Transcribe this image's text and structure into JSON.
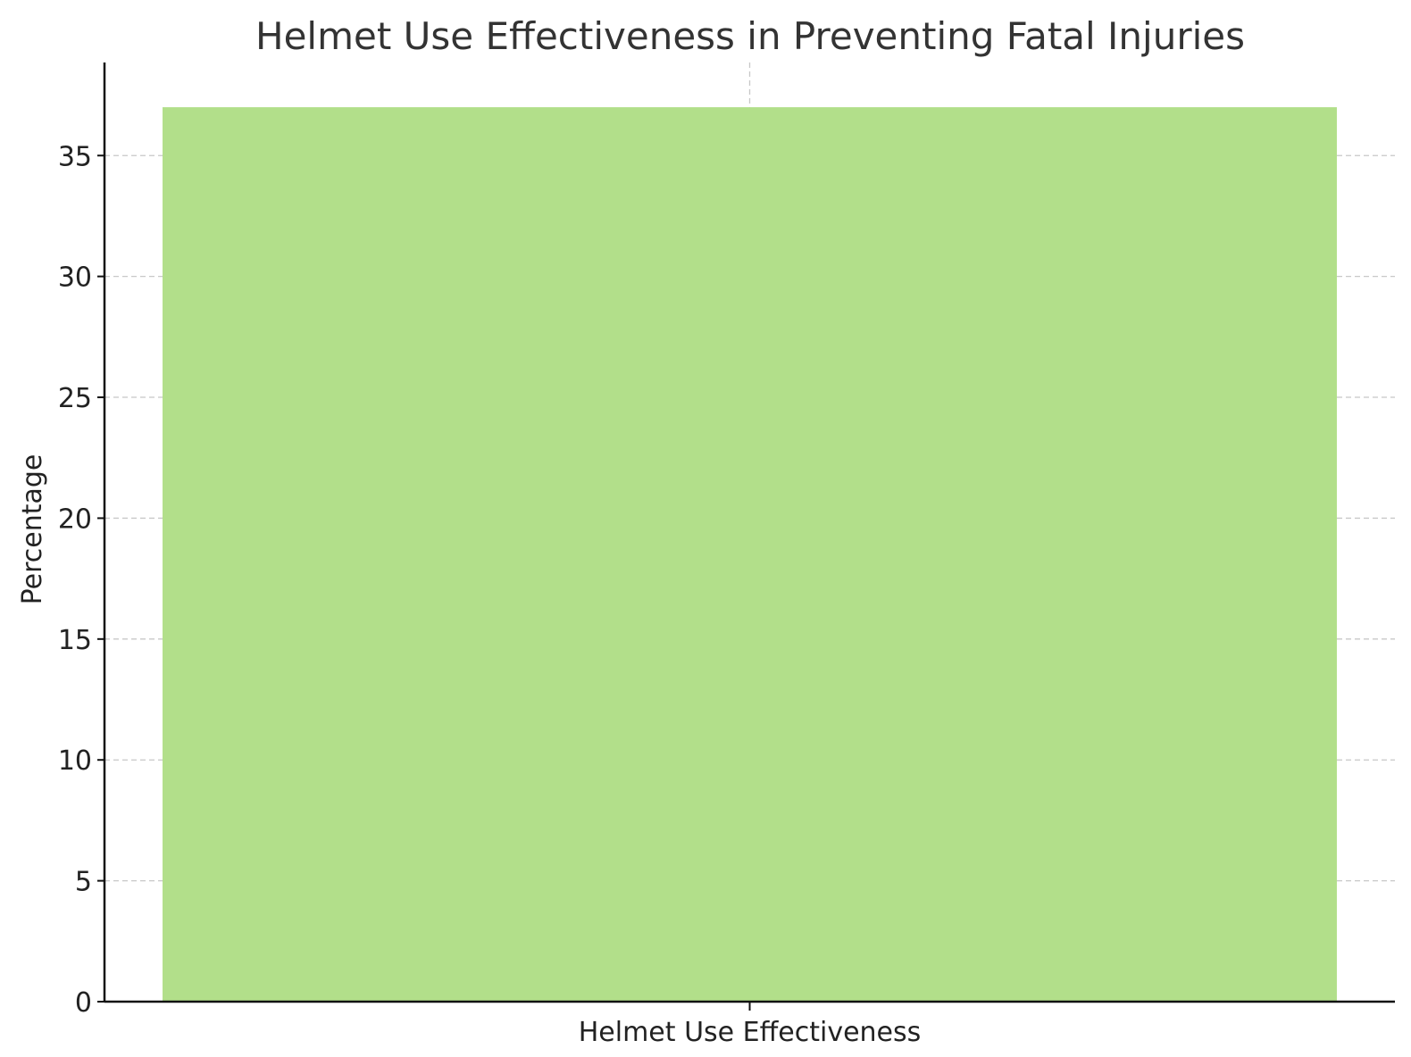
{
  "chart_data": {
    "type": "bar",
    "title": "Helmet Use Effectiveness in Preventing Fatal Injuries",
    "xlabel": "",
    "ylabel": "Percentage",
    "categories": [
      "Helmet Use Effectiveness"
    ],
    "values": [
      37
    ],
    "ylim": [
      0,
      38.85
    ],
    "yticks": [
      0,
      5,
      10,
      15,
      20,
      25,
      30,
      35
    ],
    "grid": true,
    "bar_color": "#b2df8a"
  }
}
